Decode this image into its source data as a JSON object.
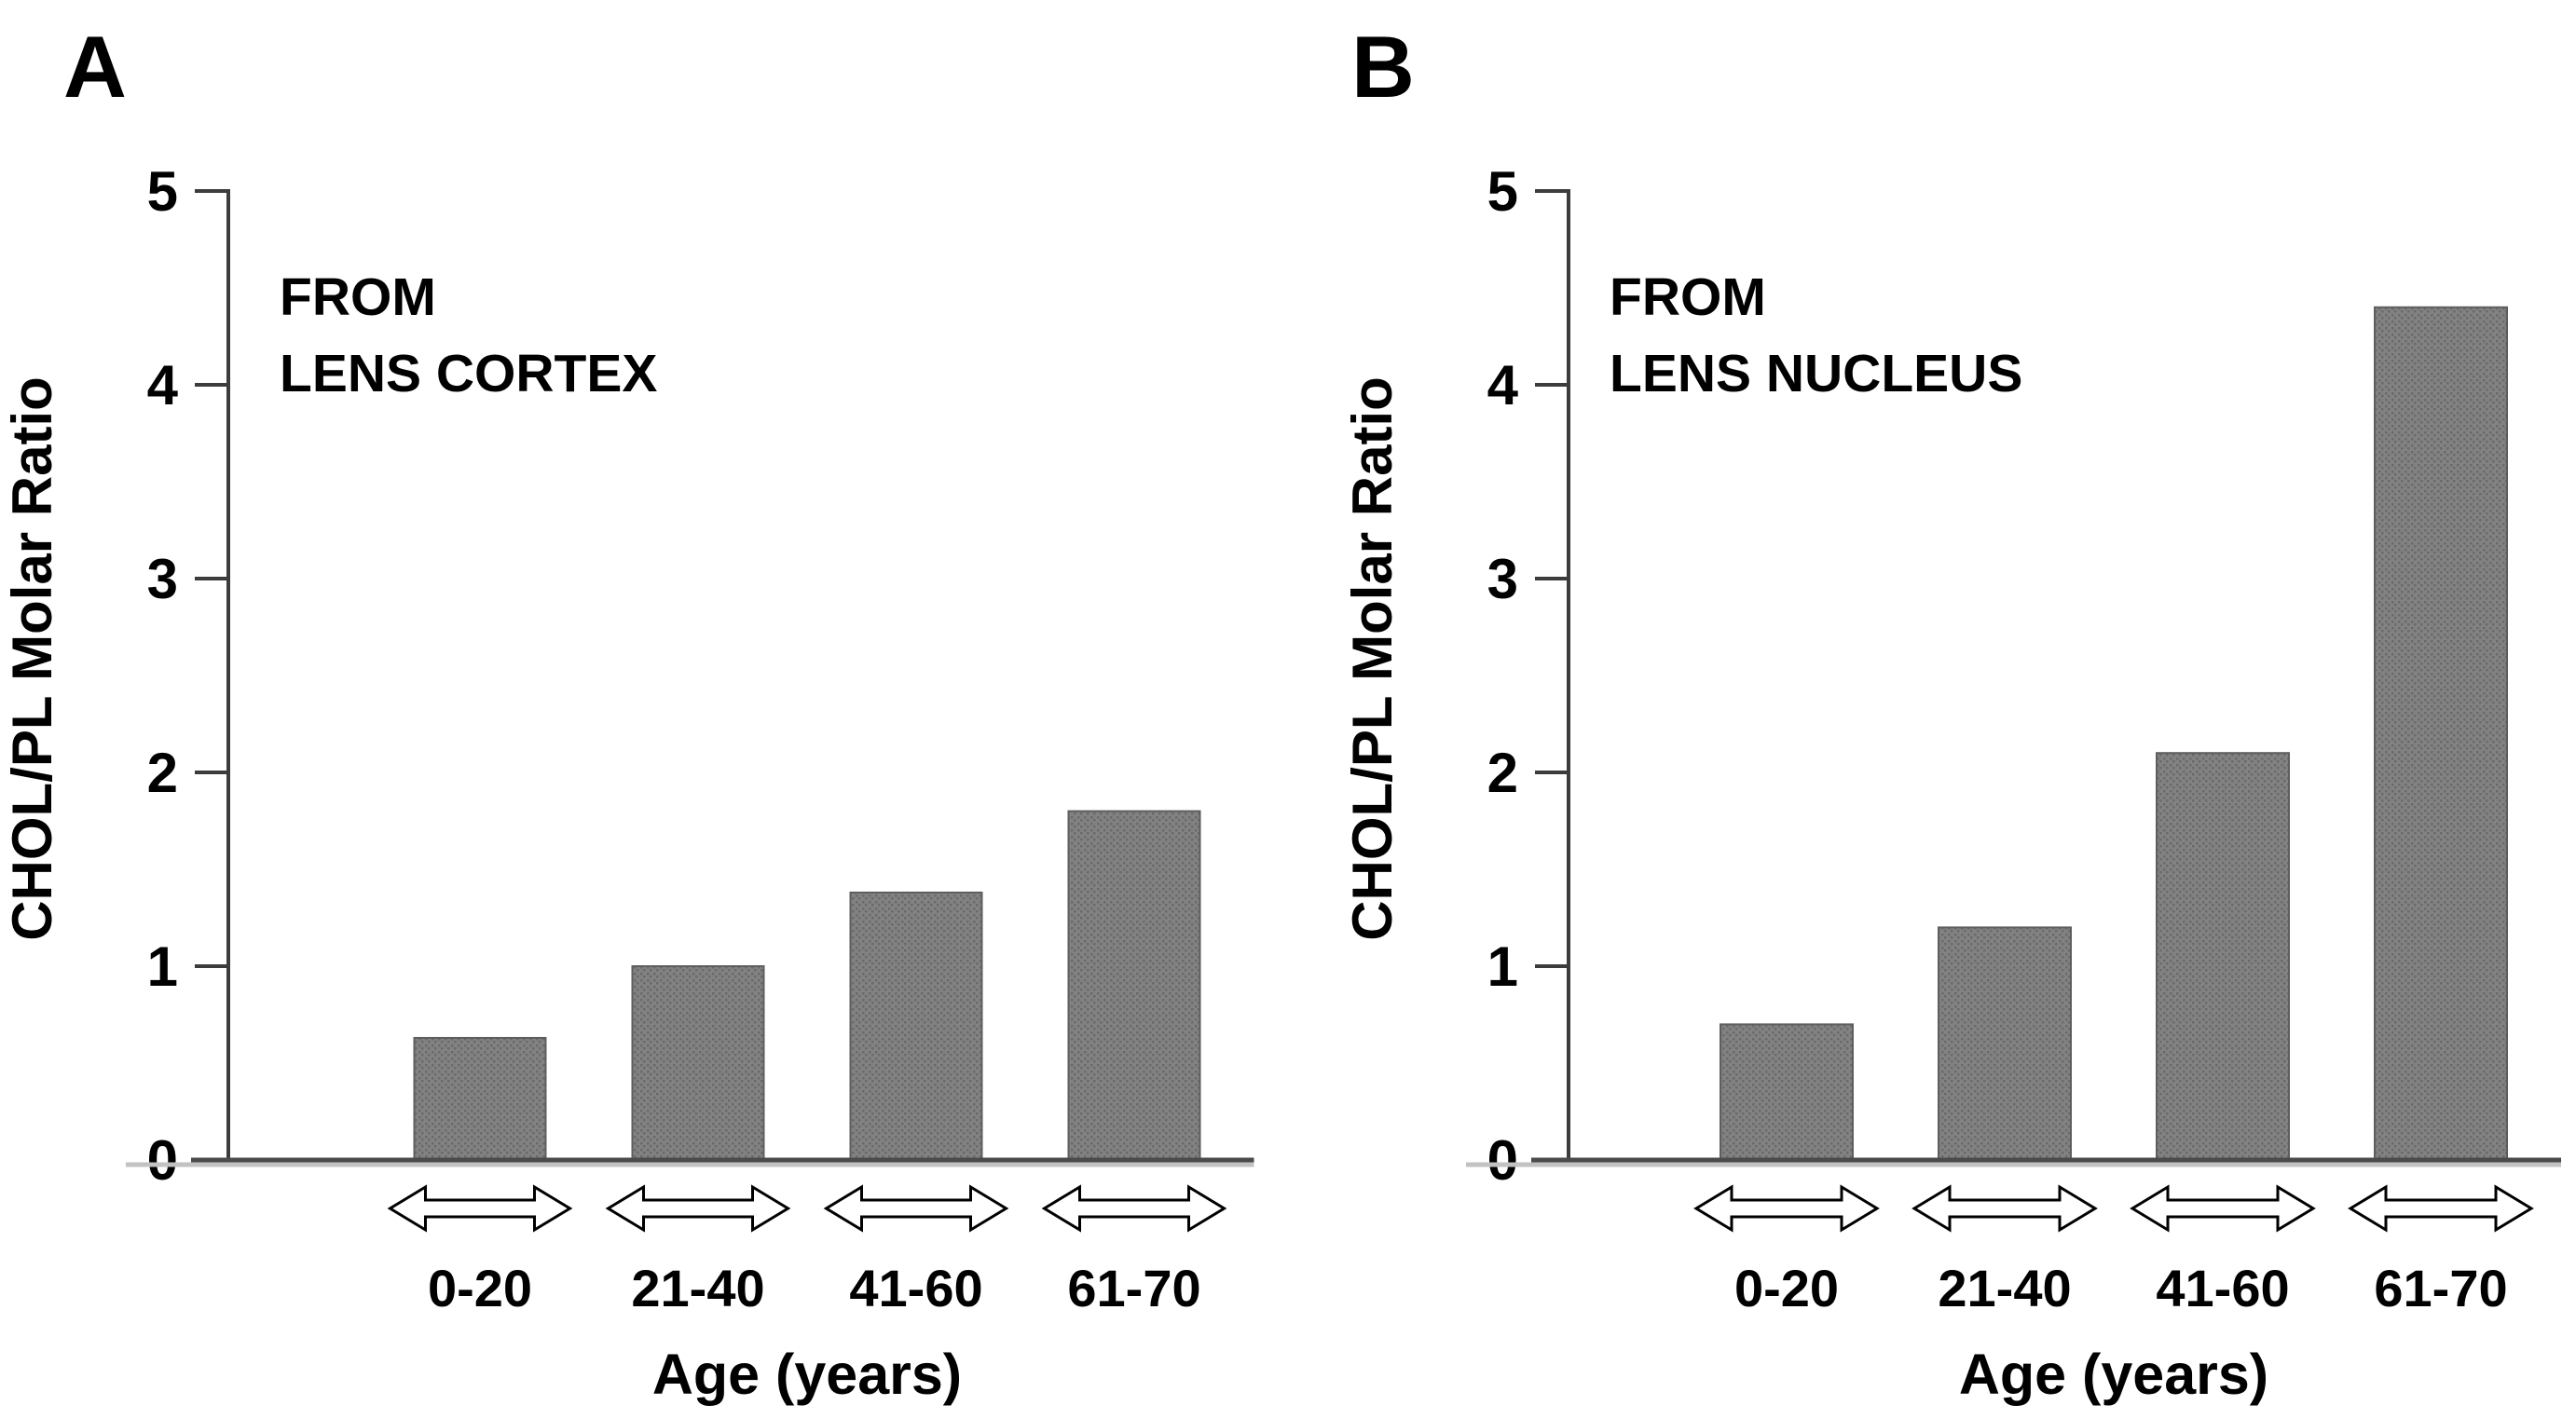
{
  "page": {
    "background": "#ffffff",
    "text_color": "#000000"
  },
  "chart_data": [
    {
      "type": "bar",
      "panel_letter": "A",
      "annotation_lines": [
        "FROM",
        "LENS CORTEX"
      ],
      "ylabel": "CHOL/PL Molar Ratio",
      "xlabel": "Age (years)",
      "categories": [
        "0-20",
        "21-40",
        "41-60",
        "61-70"
      ],
      "values": [
        0.63,
        1.0,
        1.38,
        1.8
      ],
      "ylim": [
        0,
        5
      ],
      "yticks": [
        0,
        1,
        2,
        3,
        4,
        5
      ],
      "grid": false,
      "legend": null,
      "bar_color": "#828282",
      "bar_dot_color": "#6a6a6a",
      "bar_edge_color": "#5e5e5e",
      "axis_color": "#3c3c3c",
      "baseline_color": "#4b4b4b",
      "baseline_shadow_color": "#c2c2c2",
      "arrow_fill": "#ffffff",
      "arrow_stroke": "#000000"
    },
    {
      "type": "bar",
      "panel_letter": "B",
      "annotation_lines": [
        "FROM",
        "LENS NUCLEUS"
      ],
      "ylabel": "CHOL/PL Molar Ratio",
      "xlabel": "Age (years)",
      "categories": [
        "0-20",
        "21-40",
        "41-60",
        "61-70"
      ],
      "values": [
        0.7,
        1.2,
        2.1,
        4.4
      ],
      "ylim": [
        0,
        5
      ],
      "yticks": [
        0,
        1,
        2,
        3,
        4,
        5
      ],
      "grid": false,
      "legend": null,
      "bar_color": "#828282",
      "bar_dot_color": "#6a6a6a",
      "bar_edge_color": "#5e5e5e",
      "axis_color": "#3c3c3c",
      "baseline_color": "#4b4b4b",
      "baseline_shadow_color": "#c2c2c2",
      "arrow_fill": "#ffffff",
      "arrow_stroke": "#000000"
    }
  ]
}
